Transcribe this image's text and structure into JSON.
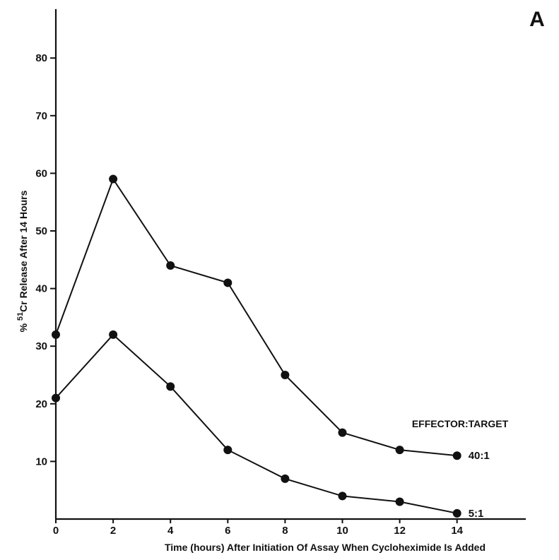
{
  "chart_data": {
    "type": "line",
    "panel_label": "A",
    "xlabel": "Time (hours) After Initiation Of Assay When Cycloheximide Is Added",
    "ylabel_parts": {
      "prefix": "% ",
      "superscript": "51",
      "suffix": "Cr Release After 14 Hours"
    },
    "x_ticks": [
      0,
      2,
      4,
      6,
      8,
      10,
      12,
      14
    ],
    "y_ticks": [
      10,
      20,
      30,
      40,
      50,
      60,
      70,
      80
    ],
    "xlim": [
      0,
      16.4
    ],
    "ylim": [
      0,
      88.5
    ],
    "legend_title": "EFFECTOR:TARGET",
    "series": [
      {
        "name": "40:1",
        "x": [
          0,
          2,
          4,
          6,
          8,
          10,
          12,
          14
        ],
        "values": [
          32,
          59,
          44,
          41,
          25,
          15,
          12,
          11
        ]
      },
      {
        "name": "5:1",
        "x": [
          0,
          2,
          4,
          6,
          8,
          10,
          12,
          14
        ],
        "values": [
          21,
          32,
          23,
          12,
          7,
          4,
          3,
          1
        ]
      }
    ],
    "grid": false,
    "colors": {
      "line": "#111111",
      "background": "#ffffff"
    }
  }
}
